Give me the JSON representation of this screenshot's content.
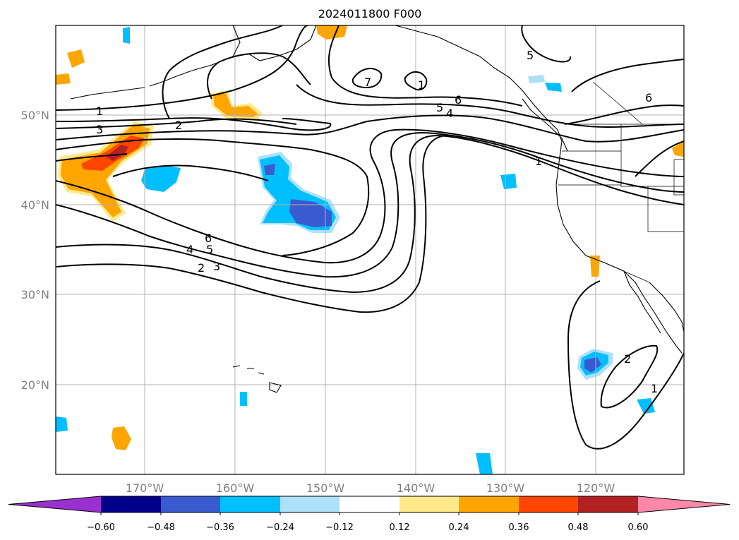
{
  "title": "2024011800 F000",
  "map": {
    "lat_labels": [
      "50°N",
      "40°N",
      "30°N",
      "20°N"
    ],
    "lon_labels": [
      "170°W",
      "160°W",
      "150°W",
      "140°W",
      "130°W",
      "120°W"
    ],
    "contour_labels": [
      "1",
      "3",
      "2",
      "6",
      "4",
      "5",
      "2",
      "3",
      "7",
      "1",
      "6",
      "5",
      "4",
      "1",
      "5",
      "6",
      "2",
      "1"
    ],
    "gridlines": "on"
  },
  "colorbar": {
    "tick_labels": [
      "−0.60",
      "−0.48",
      "−0.36",
      "−0.24",
      "−0.12",
      "0.12",
      "0.24",
      "0.36",
      "0.48",
      "0.60"
    ],
    "colors": [
      "#9b30d0",
      "#00008b",
      "#3a5bd0",
      "#00bfff",
      "#ade1fa",
      "#ffffff",
      "#ffe98a",
      "#ffa500",
      "#ff4500",
      "#b22222",
      "#ff88aa"
    ]
  }
}
